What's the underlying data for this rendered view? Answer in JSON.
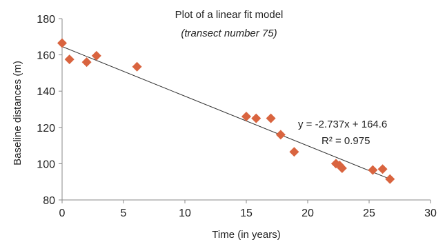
{
  "chart_data": {
    "type": "scatter",
    "title": "Plot of a linear fit model",
    "subtitle": "(transect number 75)",
    "xlabel": "Time (in years)",
    "ylabel": "Baseline distances (m)",
    "xlim": [
      0,
      30
    ],
    "ylim": [
      80,
      180
    ],
    "xticks": [
      "0",
      "5",
      "10",
      "15",
      "20",
      "25",
      "30"
    ],
    "yticks": [
      "80",
      "100",
      "120",
      "140",
      "160",
      "180"
    ],
    "grid": false,
    "marker": "diamond",
    "marker_color": "#D9643F",
    "trendline_color": "#333333",
    "series": [
      {
        "x": [
          0,
          0.6,
          2.0,
          2.8,
          6.1,
          15.0,
          15.8,
          17.0,
          17.8,
          18.9,
          22.3,
          22.6,
          22.8,
          25.3,
          26.1,
          26.7
        ],
        "y": [
          166.5,
          157.5,
          156,
          159.5,
          153.5,
          126,
          125,
          125,
          116,
          106.5,
          100,
          99,
          97.5,
          96.5,
          97,
          91.5
        ]
      }
    ],
    "trendline": {
      "slope": -2.737,
      "intercept": 164.6,
      "x_range": [
        0,
        26.7
      ]
    },
    "annotations": {
      "equation": "y = -2.737x + 164.6",
      "r_squared": "R² = 0.975"
    }
  }
}
